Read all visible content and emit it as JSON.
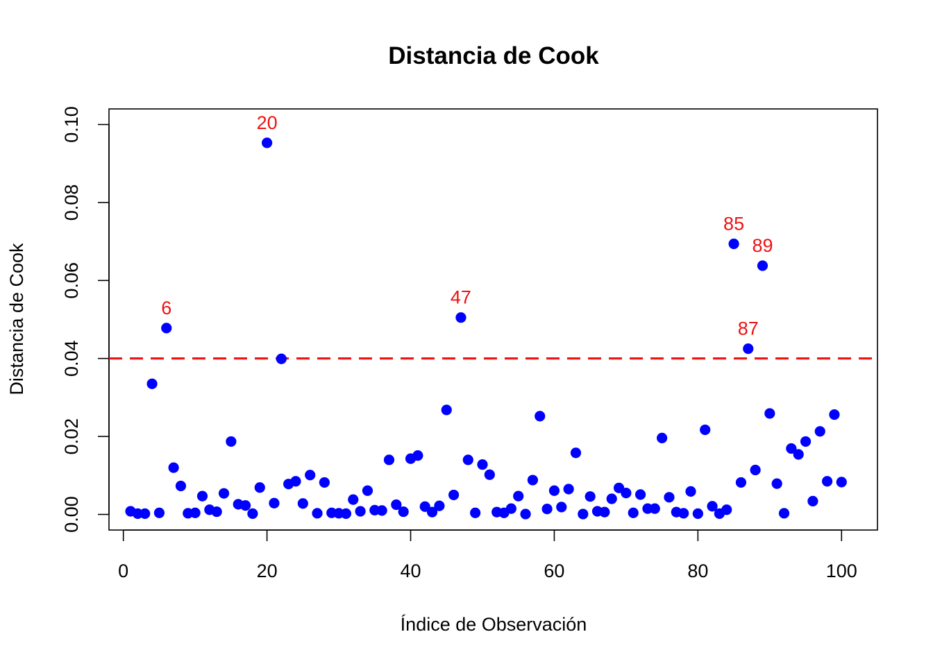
{
  "chart_data": {
    "type": "scatter",
    "title": "Distancia de Cook",
    "xlabel": "Índice de Observación",
    "ylabel": "Distancia de Cook",
    "xlim": [
      -2,
      105
    ],
    "ylim": [
      -0.004,
      0.104
    ],
    "xticks": [
      0,
      20,
      40,
      60,
      80,
      100
    ],
    "xtick_labels": [
      "0",
      "20",
      "40",
      "60",
      "80",
      "100"
    ],
    "yticks": [
      0.0,
      0.02,
      0.04,
      0.06,
      0.08,
      0.1
    ],
    "ytick_labels": [
      "0.00",
      "0.02",
      "0.04",
      "0.06",
      "0.08",
      "0.10"
    ],
    "grid": false,
    "point_color": "#0000ff",
    "threshold": {
      "value": 0.04,
      "color": "#ee1111",
      "style": "dashed"
    },
    "label_color": "#ee1111",
    "series": [
      {
        "x": [
          1,
          2,
          3,
          4,
          5,
          6,
          7,
          8,
          9,
          10,
          11,
          12,
          13,
          14,
          15,
          16,
          17,
          18,
          19,
          20,
          21,
          22,
          23,
          24,
          25,
          26,
          27,
          28,
          29,
          30,
          31,
          32,
          33,
          34,
          35,
          36,
          37,
          38,
          39,
          40,
          41,
          42,
          43,
          44,
          45,
          46,
          47,
          48,
          49,
          50,
          51,
          52,
          53,
          54,
          55,
          56,
          57,
          58,
          59,
          60,
          61,
          62,
          63,
          64,
          65,
          66,
          67,
          68,
          69,
          70,
          71,
          72,
          73,
          74,
          75,
          76,
          77,
          78,
          79,
          80,
          81,
          82,
          83,
          84,
          85,
          86,
          87,
          88,
          89,
          90,
          91,
          92,
          93,
          94,
          95,
          96,
          97,
          98,
          99,
          100
        ],
        "y": [
          0.0008,
          0.0002,
          0.0002,
          0.0335,
          0.0004,
          0.0478,
          0.012,
          0.0073,
          0.0003,
          0.0004,
          0.0047,
          0.0012,
          0.0007,
          0.0054,
          0.0187,
          0.0026,
          0.0023,
          0.0002,
          0.0069,
          0.0953,
          0.0029,
          0.0399,
          0.0078,
          0.0085,
          0.0028,
          0.0101,
          0.0003,
          0.0082,
          0.0004,
          0.0003,
          0.0002,
          0.0038,
          0.0008,
          0.0061,
          0.0011,
          0.001,
          0.014,
          0.0025,
          0.0007,
          0.0143,
          0.0151,
          0.002,
          0.0006,
          0.0022,
          0.0268,
          0.005,
          0.0505,
          0.014,
          0.0004,
          0.0128,
          0.0102,
          0.0006,
          0.0004,
          0.0015,
          0.0047,
          0.0001,
          0.0088,
          0.0252,
          0.0014,
          0.0061,
          0.0019,
          0.0065,
          0.0158,
          0.0001,
          0.0046,
          0.0008,
          0.0006,
          0.004,
          0.0068,
          0.0055,
          0.0004,
          0.0051,
          0.0015,
          0.0015,
          0.0196,
          0.0044,
          0.0006,
          0.0003,
          0.0059,
          0.0002,
          0.0217,
          0.0021,
          0.0002,
          0.0012,
          0.0694,
          0.0082,
          0.0425,
          0.0114,
          0.0638,
          0.0259,
          0.0079,
          0.0003,
          0.0169,
          0.0154,
          0.0187,
          0.0034,
          0.0213,
          0.0085,
          0.0256,
          0.0083
        ]
      }
    ],
    "annotations": [
      {
        "text": "6",
        "x": 6,
        "y": 0.0478
      },
      {
        "text": "20",
        "x": 20,
        "y": 0.0953
      },
      {
        "text": "47",
        "x": 47,
        "y": 0.0505
      },
      {
        "text": "85",
        "x": 85,
        "y": 0.0694
      },
      {
        "text": "87",
        "x": 87,
        "y": 0.0425
      },
      {
        "text": "89",
        "x": 89,
        "y": 0.0638
      }
    ]
  }
}
